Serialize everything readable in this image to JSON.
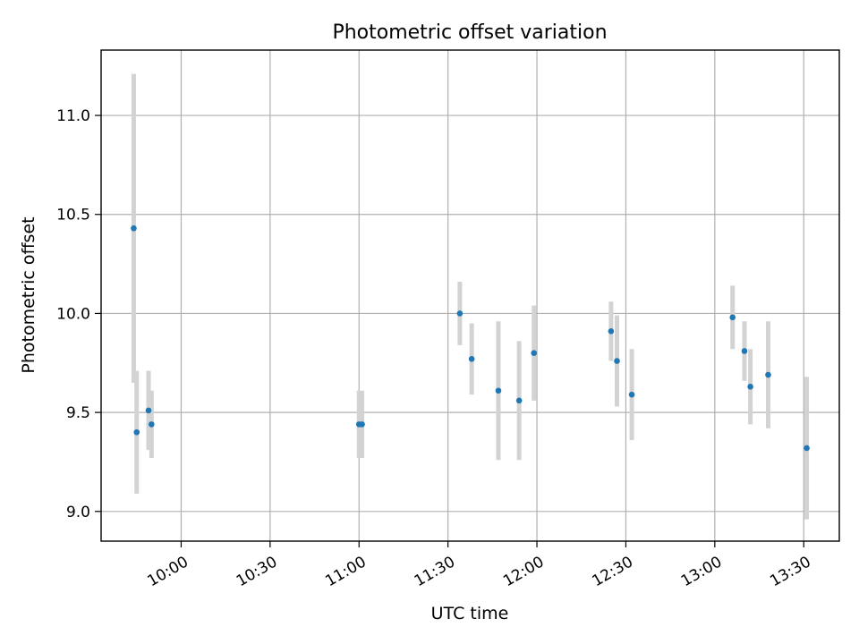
{
  "chart_data": {
    "type": "scatter",
    "title": "Photometric offset variation",
    "xlabel": "UTC time",
    "ylabel": "Photometric offset",
    "x_tick_labels": [
      "10:00",
      "10:30",
      "11:00",
      "11:30",
      "12:00",
      "12:30",
      "13:00",
      "13:30"
    ],
    "y_tick_labels": [
      "9.0",
      "9.5",
      "10.0",
      "10.5",
      "11.0"
    ],
    "x_ticks": [
      "10:00",
      "10:30",
      "11:00",
      "11:30",
      "12:00",
      "12:30",
      "13:00",
      "13:30"
    ],
    "y_ticks": [
      9.0,
      9.5,
      10.0,
      10.5,
      11.0
    ],
    "xlim": [
      "09:33",
      "13:42"
    ],
    "ylim": [
      8.85,
      11.33
    ],
    "grid": true,
    "marker_color": "#1f77b4",
    "errorbar_color": "#d3d3d3",
    "points": [
      {
        "x": "09:44",
        "y": 10.43,
        "yerr": 0.78
      },
      {
        "x": "09:45",
        "y": 9.4,
        "yerr": 0.31
      },
      {
        "x": "09:49",
        "y": 9.51,
        "yerr": 0.2
      },
      {
        "x": "09:50",
        "y": 9.44,
        "yerr": 0.17
      },
      {
        "x": "11:00",
        "y": 9.44,
        "yerr": 0.17
      },
      {
        "x": "11:01",
        "y": 9.44,
        "yerr": 0.17
      },
      {
        "x": "11:34",
        "y": 10.0,
        "yerr": 0.16
      },
      {
        "x": "11:38",
        "y": 9.77,
        "yerr": 0.18
      },
      {
        "x": "11:47",
        "y": 9.61,
        "yerr": 0.35
      },
      {
        "x": "11:54",
        "y": 9.56,
        "yerr": 0.3
      },
      {
        "x": "11:59",
        "y": 9.8,
        "yerr": 0.24
      },
      {
        "x": "12:25",
        "y": 9.91,
        "yerr": 0.15
      },
      {
        "x": "12:27",
        "y": 9.76,
        "yerr": 0.23
      },
      {
        "x": "12:32",
        "y": 9.59,
        "yerr": 0.23
      },
      {
        "x": "13:06",
        "y": 9.98,
        "yerr": 0.16
      },
      {
        "x": "13:10",
        "y": 9.81,
        "yerr": 0.15
      },
      {
        "x": "13:12",
        "y": 9.63,
        "yerr": 0.19
      },
      {
        "x": "13:18",
        "y": 9.69,
        "yerr": 0.27
      },
      {
        "x": "13:31",
        "y": 9.32,
        "yerr": 0.36
      }
    ]
  }
}
